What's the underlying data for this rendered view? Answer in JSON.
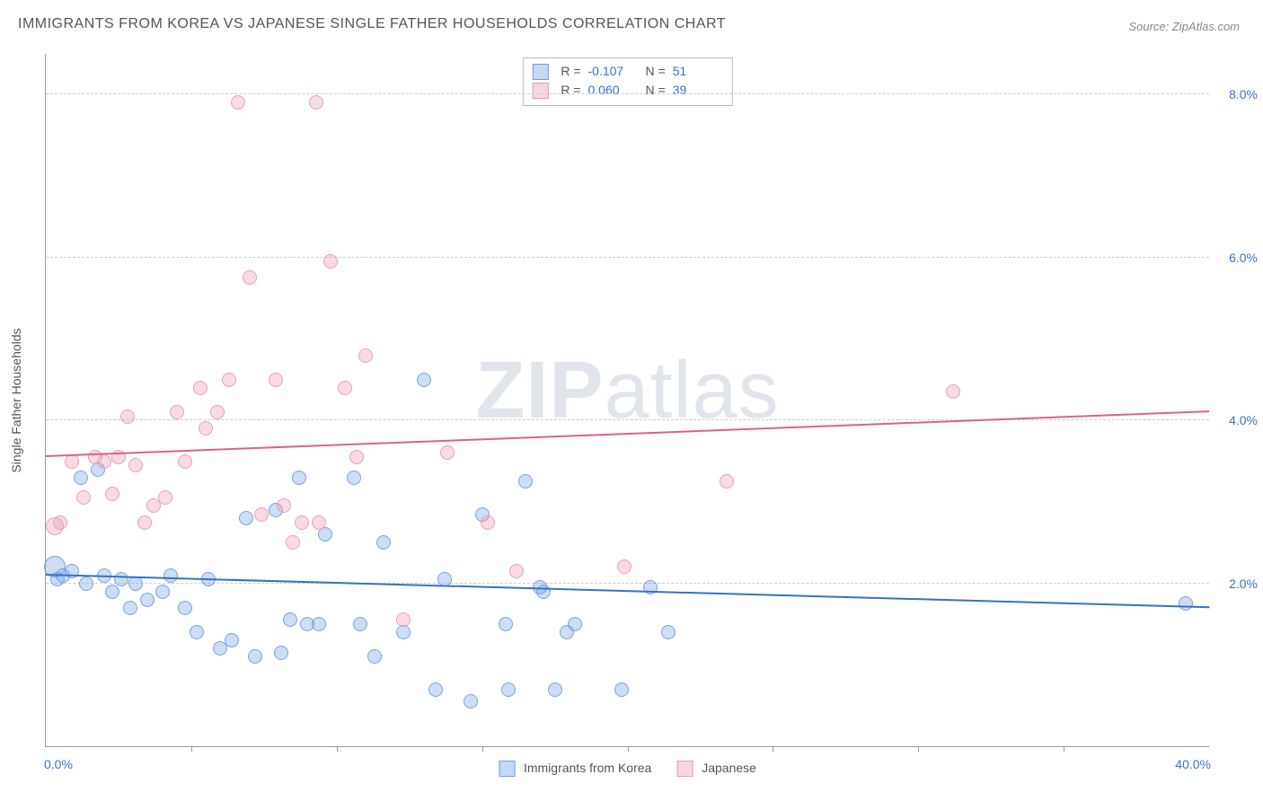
{
  "title": "IMMIGRANTS FROM KOREA VS JAPANESE SINGLE FATHER HOUSEHOLDS CORRELATION CHART",
  "source": "Source: ZipAtlas.com",
  "watermark": {
    "bold": "ZIP",
    "light": "atlas"
  },
  "chart": {
    "type": "scatter",
    "ylabel": "Single Father Households",
    "xlim": [
      0,
      40
    ],
    "ylim": [
      0,
      8.5
    ],
    "x_min_label": "0.0%",
    "x_max_label": "40.0%",
    "ytick_labels": [
      "2.0%",
      "4.0%",
      "6.0%",
      "8.0%"
    ],
    "ytick_vals": [
      2,
      4,
      6,
      8
    ],
    "xtick_vals": [
      5,
      10,
      15,
      20,
      25,
      30,
      35
    ],
    "grid_color": "#cccccc",
    "axis_color": "#999999",
    "tick_label_color": "#3a6fc9",
    "background_color": "#ffffff",
    "marker_radius": 8,
    "marker_fill_opacity": 0.35,
    "marker_stroke_opacity": 0.9,
    "series": [
      {
        "name": "Immigrants from Korea",
        "color": "#6f9fe0",
        "trend": {
          "x1": 0,
          "y1": 2.1,
          "x2": 40,
          "y2": 1.7,
          "color": "#3a6fc9",
          "width": 2
        },
        "legend": {
          "R": "-0.107",
          "N": "51"
        },
        "points": [
          {
            "x": 0.3,
            "y": 2.2,
            "r": 12
          },
          {
            "x": 0.4,
            "y": 2.05
          },
          {
            "x": 0.6,
            "y": 2.1
          },
          {
            "x": 0.9,
            "y": 2.15
          },
          {
            "x": 1.2,
            "y": 3.3
          },
          {
            "x": 1.4,
            "y": 2.0
          },
          {
            "x": 1.8,
            "y": 3.4
          },
          {
            "x": 2.0,
            "y": 2.1
          },
          {
            "x": 2.3,
            "y": 1.9
          },
          {
            "x": 2.6,
            "y": 2.05
          },
          {
            "x": 2.9,
            "y": 1.7
          },
          {
            "x": 3.1,
            "y": 2.0
          },
          {
            "x": 3.5,
            "y": 1.8
          },
          {
            "x": 4.0,
            "y": 1.9
          },
          {
            "x": 4.3,
            "y": 2.1
          },
          {
            "x": 4.8,
            "y": 1.7
          },
          {
            "x": 5.2,
            "y": 1.4
          },
          {
            "x": 5.6,
            "y": 2.05
          },
          {
            "x": 6.0,
            "y": 1.2
          },
          {
            "x": 6.4,
            "y": 1.3
          },
          {
            "x": 6.9,
            "y": 2.8
          },
          {
            "x": 7.2,
            "y": 1.1
          },
          {
            "x": 7.9,
            "y": 2.9
          },
          {
            "x": 8.1,
            "y": 1.15
          },
          {
            "x": 8.4,
            "y": 1.55
          },
          {
            "x": 8.7,
            "y": 3.3
          },
          {
            "x": 9.0,
            "y": 1.5
          },
          {
            "x": 9.4,
            "y": 1.5
          },
          {
            "x": 9.6,
            "y": 2.6
          },
          {
            "x": 10.6,
            "y": 3.3
          },
          {
            "x": 10.8,
            "y": 1.5
          },
          {
            "x": 11.3,
            "y": 1.1
          },
          {
            "x": 11.6,
            "y": 2.5
          },
          {
            "x": 12.3,
            "y": 1.4
          },
          {
            "x": 13.0,
            "y": 4.5
          },
          {
            "x": 13.4,
            "y": 0.7
          },
          {
            "x": 13.7,
            "y": 2.05
          },
          {
            "x": 14.6,
            "y": 0.55
          },
          {
            "x": 15.0,
            "y": 2.85
          },
          {
            "x": 15.8,
            "y": 1.5
          },
          {
            "x": 15.9,
            "y": 0.7
          },
          {
            "x": 16.5,
            "y": 3.25
          },
          {
            "x": 17.0,
            "y": 1.95
          },
          {
            "x": 17.1,
            "y": 1.9
          },
          {
            "x": 17.5,
            "y": 0.7
          },
          {
            "x": 17.9,
            "y": 1.4
          },
          {
            "x": 18.2,
            "y": 1.5
          },
          {
            "x": 19.8,
            "y": 0.7
          },
          {
            "x": 20.8,
            "y": 1.95
          },
          {
            "x": 21.4,
            "y": 1.4
          },
          {
            "x": 39.2,
            "y": 1.75
          }
        ]
      },
      {
        "name": "Japanese",
        "color": "#e89ab0",
        "trend": {
          "x1": 0,
          "y1": 3.55,
          "x2": 40,
          "y2": 4.1,
          "color": "#e06088",
          "width": 2
        },
        "legend": {
          "R": "0.060",
          "N": "39"
        },
        "points": [
          {
            "x": 0.3,
            "y": 2.7,
            "r": 10
          },
          {
            "x": 0.5,
            "y": 2.75
          },
          {
            "x": 0.9,
            "y": 3.5
          },
          {
            "x": 1.3,
            "y": 3.05
          },
          {
            "x": 1.7,
            "y": 3.55
          },
          {
            "x": 2.0,
            "y": 3.5
          },
          {
            "x": 2.3,
            "y": 3.1
          },
          {
            "x": 2.5,
            "y": 3.55
          },
          {
            "x": 2.8,
            "y": 4.05
          },
          {
            "x": 3.1,
            "y": 3.45
          },
          {
            "x": 3.4,
            "y": 2.75
          },
          {
            "x": 3.7,
            "y": 2.95
          },
          {
            "x": 4.1,
            "y": 3.05
          },
          {
            "x": 4.5,
            "y": 4.1
          },
          {
            "x": 4.8,
            "y": 3.5
          },
          {
            "x": 5.3,
            "y": 4.4
          },
          {
            "x": 5.5,
            "y": 3.9
          },
          {
            "x": 5.9,
            "y": 4.1
          },
          {
            "x": 6.3,
            "y": 4.5
          },
          {
            "x": 6.6,
            "y": 7.9
          },
          {
            "x": 7.0,
            "y": 5.75
          },
          {
            "x": 7.4,
            "y": 2.85
          },
          {
            "x": 7.9,
            "y": 4.5
          },
          {
            "x": 8.2,
            "y": 2.95
          },
          {
            "x": 8.5,
            "y": 2.5
          },
          {
            "x": 8.8,
            "y": 2.75
          },
          {
            "x": 9.3,
            "y": 7.9
          },
          {
            "x": 9.4,
            "y": 2.75
          },
          {
            "x": 9.8,
            "y": 5.95
          },
          {
            "x": 10.3,
            "y": 4.4
          },
          {
            "x": 10.7,
            "y": 3.55
          },
          {
            "x": 11.0,
            "y": 4.8
          },
          {
            "x": 12.3,
            "y": 1.55
          },
          {
            "x": 13.8,
            "y": 3.6
          },
          {
            "x": 15.2,
            "y": 2.75
          },
          {
            "x": 16.2,
            "y": 2.15
          },
          {
            "x": 19.9,
            "y": 2.2
          },
          {
            "x": 23.4,
            "y": 3.25
          },
          {
            "x": 31.2,
            "y": 4.35
          }
        ]
      }
    ],
    "legend_bottom": [
      {
        "label": "Immigrants from Korea",
        "color": "#6f9fe0"
      },
      {
        "label": "Japanese",
        "color": "#e89ab0"
      }
    ]
  }
}
